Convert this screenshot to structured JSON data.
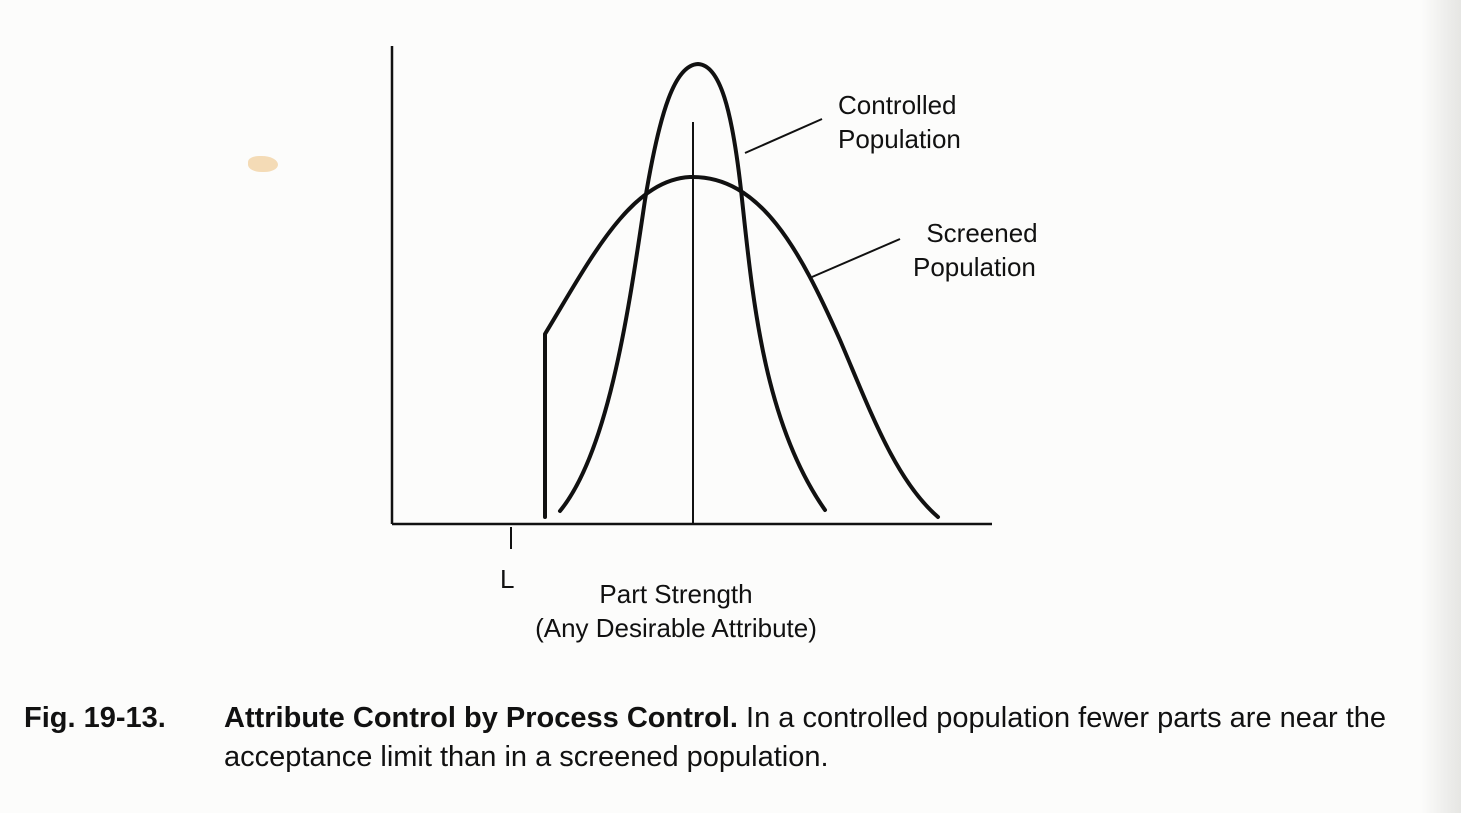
{
  "diagram": {
    "axis_tick_label": "L",
    "x_axis_label_line1": "Part Strength",
    "x_axis_label_line2": "(Any Desirable Attribute)",
    "controlled_label_line1": "Controlled",
    "controlled_label_line2": "Population",
    "screened_label_line1": "Screened",
    "screened_label_line2": "Population"
  },
  "caption": {
    "figure_number": "Fig. 19-13.",
    "title": "Attribute Control by Process Control.",
    "text": " In a controlled population fewer parts are near the acceptance limit than in a screened population."
  }
}
